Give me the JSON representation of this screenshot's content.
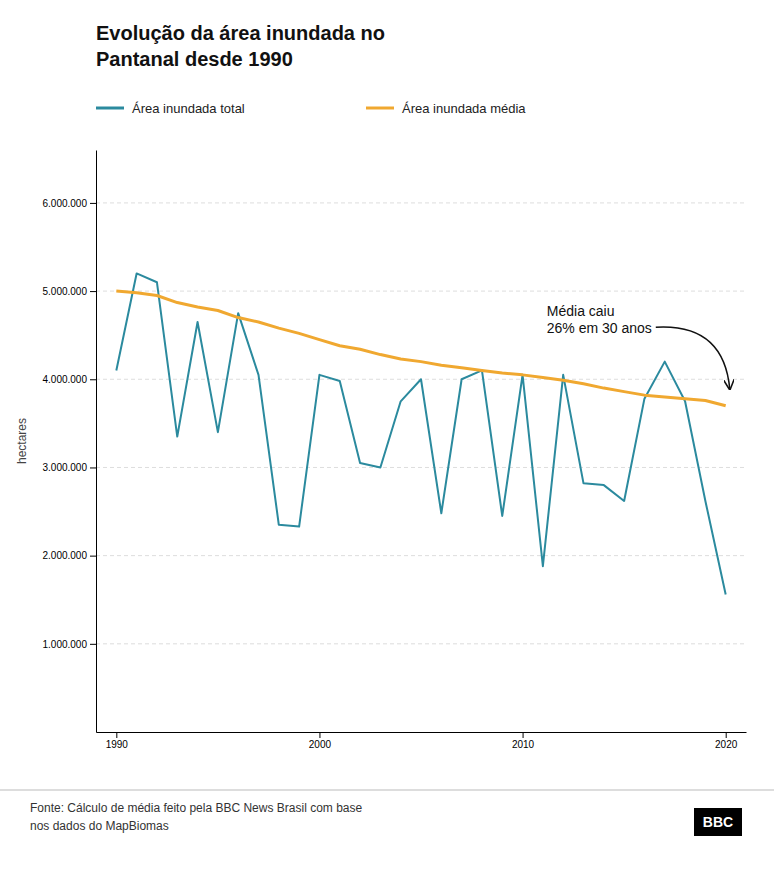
{
  "chart_data": {
    "type": "line",
    "title": "Evolução da área inundada no\nPantanal desde 1990",
    "ylabel": "hectares",
    "source": "Fonte: Cálculo de média feito pela BBC News Brasil com base\nnos dados do MapBiomas",
    "logo": "BBC",
    "annotation": {
      "text": "Média caiu\n26% em 30 anos",
      "x": 2020.3,
      "y": 3820000
    },
    "x": [
      1990,
      1991,
      1992,
      1993,
      1994,
      1995,
      1996,
      1997,
      1998,
      1999,
      2000,
      2001,
      2002,
      2003,
      2004,
      2005,
      2006,
      2007,
      2008,
      2009,
      2010,
      2011,
      2012,
      2013,
      2014,
      2015,
      2016,
      2017,
      2018,
      2019,
      2020
    ],
    "series": [
      {
        "name": "Área inundada total",
        "color": "#2b8a9e",
        "values": [
          4100000,
          5200000,
          5100000,
          3350000,
          4650000,
          3400000,
          4750000,
          4050000,
          2350000,
          2330000,
          4050000,
          3980000,
          3050000,
          3000000,
          3750000,
          4000000,
          2480000,
          4000000,
          4100000,
          2450000,
          4050000,
          1880000,
          4050000,
          2820000,
          2800000,
          2620000,
          3780000,
          4200000,
          3750000,
          2620000,
          1560000
        ]
      },
      {
        "name": "Área inundada média",
        "color": "#f0a830",
        "values": [
          5000000,
          4980000,
          4950000,
          4870000,
          4820000,
          4780000,
          4700000,
          4650000,
          4580000,
          4520000,
          4450000,
          4380000,
          4340000,
          4280000,
          4230000,
          4200000,
          4160000,
          4130000,
          4100000,
          4070000,
          4050000,
          4020000,
          3990000,
          3950000,
          3900000,
          3860000,
          3820000,
          3800000,
          3780000,
          3760000,
          3700000
        ]
      }
    ],
    "xlim": [
      1989.0,
      2021.0
    ],
    "ylim": [
      0,
      6600000
    ],
    "xticks": [
      1990,
      2000,
      2010,
      2020
    ],
    "yticks": [
      {
        "value": 1000000,
        "label": "1.000.000"
      },
      {
        "value": 2000000,
        "label": "2.000.000"
      },
      {
        "value": 3000000,
        "label": "3.000.000"
      },
      {
        "value": 4000000,
        "label": "4.000.000"
      },
      {
        "value": 5000000,
        "label": "5.000.000"
      },
      {
        "value": 6000000,
        "label": "6.000.000"
      }
    ],
    "grid": true,
    "legend": "top"
  }
}
